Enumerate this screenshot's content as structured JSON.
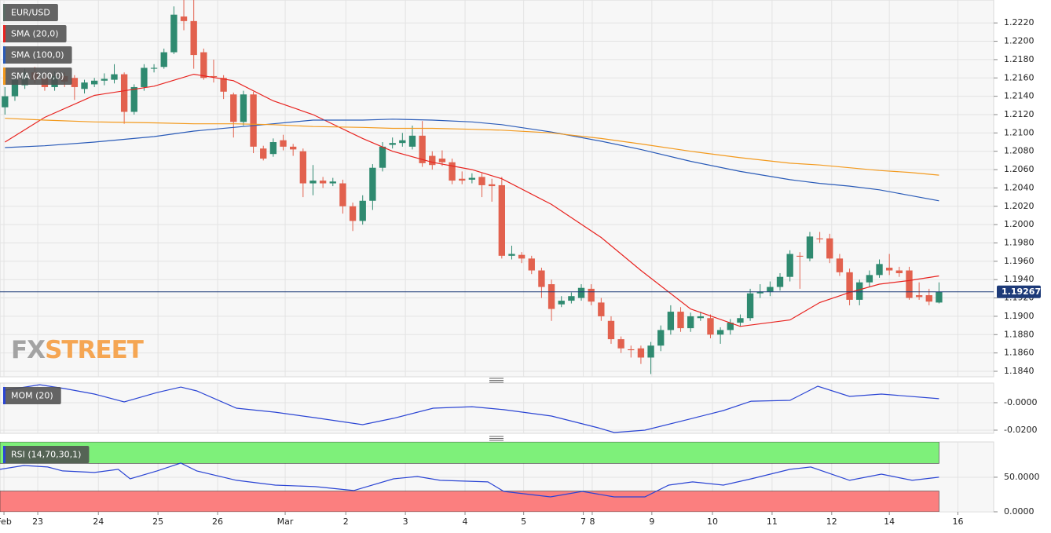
{
  "watermark": {
    "fx": "FX",
    "street": "STREET"
  },
  "chart_data": [
    {
      "type": "candlestick",
      "xlim": [
        -0.5,
        99.5
      ],
      "ylim": [
        1.1834,
        1.2245
      ],
      "yticks": [
        {
          "value": 1.222,
          "label": "1.2220"
        },
        {
          "value": 1.22,
          "label": "1.2200"
        },
        {
          "value": 1.218,
          "label": "1.2180"
        },
        {
          "value": 1.216,
          "label": "1.2160"
        },
        {
          "value": 1.214,
          "label": "1.2140"
        },
        {
          "value": 1.212,
          "label": "1.2120"
        },
        {
          "value": 1.21,
          "label": "1.2100"
        },
        {
          "value": 1.208,
          "label": "1.2080"
        },
        {
          "value": 1.206,
          "label": "1.2060"
        },
        {
          "value": 1.204,
          "label": "1.2040"
        },
        {
          "value": 1.202,
          "label": "1.2020"
        },
        {
          "value": 1.2,
          "label": "1.2000"
        },
        {
          "value": 1.198,
          "label": "1.1980"
        },
        {
          "value": 1.196,
          "label": "1.1960"
        },
        {
          "value": 1.194,
          "label": "1.1940"
        },
        {
          "value": 1.192,
          "label": "1.1920"
        },
        {
          "value": 1.19,
          "label": "1.1900"
        },
        {
          "value": 1.188,
          "label": "1.1880"
        },
        {
          "value": 1.186,
          "label": "1.1860"
        },
        {
          "value": 1.184,
          "label": "1.1840"
        }
      ],
      "last_price": {
        "value": 1.19267,
        "label": "1.19267",
        "color": "#1d3a78"
      },
      "series": [
        {
          "name": "EUR/USD",
          "up_color": "#2f8a70",
          "down_color": "#e2614e",
          "color": "#596b63",
          "x": [
            0,
            1,
            2,
            3,
            4,
            5,
            6,
            7,
            8,
            9,
            10,
            11,
            12,
            13,
            14,
            15,
            16,
            17,
            18,
            19,
            20,
            21,
            22,
            23,
            24,
            25,
            26,
            27,
            28,
            29,
            30,
            31,
            32,
            33,
            34,
            35,
            36,
            37,
            38,
            39,
            40,
            41,
            42,
            43,
            44,
            45,
            46,
            47,
            48,
            49,
            50,
            51,
            52,
            53,
            54,
            55,
            56,
            57,
            58,
            59,
            60,
            61,
            62,
            63,
            64,
            65,
            66,
            67,
            68,
            69,
            70,
            71,
            72,
            73,
            74,
            75,
            76,
            77,
            78,
            79,
            80,
            81,
            82,
            83,
            84,
            85,
            86,
            87,
            88,
            89,
            90,
            91,
            92,
            93,
            94
          ],
          "open": [
            1.2128,
            1.214,
            1.2152,
            1.2166,
            1.216,
            1.215,
            1.2162,
            1.216,
            1.2148,
            1.2153,
            1.2157,
            1.2158,
            1.2164,
            1.2123,
            1.215,
            1.217,
            1.2172,
            1.2188,
            1.2227,
            1.2222,
            1.2188,
            1.2162,
            1.216,
            1.2142,
            1.2112,
            1.2142,
            1.2083,
            1.2077,
            1.2092,
            1.2085,
            1.208,
            1.2045,
            1.2048,
            1.2045,
            1.2045,
            1.202,
            1.2004,
            1.2026,
            1.2062,
            1.2087,
            1.2089,
            1.2085,
            1.2097,
            1.2075,
            1.2072,
            1.2068,
            1.205,
            1.2049,
            1.2052,
            1.2044,
            1.2043,
            1.1966,
            1.1967,
            1.1963,
            1.195,
            1.1935,
            1.1913,
            1.1917,
            1.192,
            1.193,
            1.1915,
            1.1895,
            1.1875,
            1.1864,
            1.1865,
            1.1855,
            1.1868,
            1.1885,
            1.1905,
            1.1887,
            1.1898,
            1.1898,
            1.188,
            1.1885,
            1.1893,
            1.1898,
            1.1925,
            1.1927,
            1.1932,
            1.1943,
            1.1966,
            1.1963,
            1.1985,
            1.1985,
            1.1963,
            1.1948,
            1.1918,
            1.1937,
            1.1945,
            1.1953,
            1.195,
            1.195,
            1.1923,
            1.1923,
            1.1915
          ],
          "high": [
            1.215,
            1.2162,
            1.217,
            1.2172,
            1.2165,
            1.2167,
            1.2166,
            1.2163,
            1.2158,
            1.216,
            1.2165,
            1.2175,
            1.2166,
            1.2153,
            1.2175,
            1.2175,
            1.2192,
            1.2238,
            1.2247,
            1.2245,
            1.2192,
            1.218,
            1.2163,
            1.2144,
            1.2146,
            1.2145,
            1.2086,
            1.2094,
            1.2098,
            1.2088,
            1.2083,
            1.2065,
            1.2052,
            1.2051,
            1.2049,
            1.2024,
            1.2032,
            1.2066,
            1.209,
            1.2095,
            1.21,
            1.2108,
            1.2113,
            1.208,
            1.2081,
            1.2072,
            1.2058,
            1.2056,
            1.2056,
            1.205,
            1.2052,
            1.1977,
            1.197,
            1.1966,
            1.1953,
            1.194,
            1.1922,
            1.1926,
            1.1935,
            1.1935,
            1.192,
            1.19,
            1.1878,
            1.1868,
            1.1868,
            1.1872,
            1.189,
            1.1912,
            1.191,
            1.1904,
            1.1905,
            1.1902,
            1.1888,
            1.1897,
            1.1902,
            1.193,
            1.1935,
            1.1938,
            1.1947,
            1.1972,
            1.197,
            1.1992,
            1.1992,
            1.199,
            1.1968,
            1.1952,
            1.194,
            1.195,
            1.1962,
            1.1968,
            1.1954,
            1.1954,
            1.1937,
            1.193,
            1.1937
          ],
          "low": [
            1.212,
            1.2135,
            1.2148,
            1.2154,
            1.2146,
            1.2146,
            1.215,
            1.2136,
            1.2143,
            1.215,
            1.2152,
            1.2154,
            1.211,
            1.212,
            1.2146,
            1.2166,
            1.217,
            1.2186,
            1.2212,
            1.217,
            1.2158,
            1.2155,
            1.2137,
            1.2095,
            1.2108,
            1.2078,
            1.207,
            1.2074,
            1.2081,
            1.2075,
            1.203,
            1.2032,
            1.204,
            1.2042,
            1.2012,
            1.1993,
            1.2,
            1.2016,
            1.2058,
            1.2083,
            1.2085,
            1.2082,
            1.2063,
            1.206,
            1.2064,
            1.2044,
            1.2044,
            1.2045,
            1.203,
            1.2025,
            1.1963,
            1.1962,
            1.1958,
            1.1946,
            1.192,
            1.1895,
            1.191,
            1.1914,
            1.1917,
            1.1912,
            1.1895,
            1.187,
            1.186,
            1.1855,
            1.1848,
            1.1837,
            1.1862,
            1.188,
            1.1883,
            1.1883,
            1.1895,
            1.1876,
            1.187,
            1.188,
            1.1889,
            1.1895,
            1.192,
            1.1922,
            1.1928,
            1.1938,
            1.193,
            1.196,
            1.198,
            1.1958,
            1.1944,
            1.1912,
            1.1912,
            1.1932,
            1.1942,
            1.1945,
            1.1943,
            1.1918,
            1.1918,
            1.1912,
            1.1914
          ],
          "close": [
            1.214,
            1.2158,
            1.2166,
            1.2158,
            1.215,
            1.2162,
            1.2156,
            1.215,
            1.2155,
            1.2157,
            1.2159,
            1.2164,
            1.2123,
            1.215,
            1.2171,
            1.2171,
            1.2188,
            1.2229,
            1.2222,
            1.2185,
            1.216,
            1.2161,
            1.2145,
            1.2112,
            1.2142,
            1.2085,
            1.2072,
            1.209,
            1.2085,
            1.2082,
            1.2045,
            1.2048,
            1.2045,
            1.2047,
            1.202,
            1.2004,
            1.2026,
            1.2062,
            1.2085,
            1.2089,
            1.2092,
            1.2097,
            1.2067,
            1.2065,
            1.2068,
            1.2048,
            1.2048,
            1.2051,
            1.2043,
            1.2042,
            1.1966,
            1.1968,
            1.1963,
            1.195,
            1.1932,
            1.1908,
            1.1917,
            1.1922,
            1.1931,
            1.1916,
            1.19,
            1.1875,
            1.1865,
            1.1863,
            1.1855,
            1.1868,
            1.1885,
            1.1905,
            1.1887,
            1.19,
            1.19,
            1.188,
            1.1885,
            1.1893,
            1.1898,
            1.1925,
            1.1927,
            1.1932,
            1.1943,
            1.1968,
            1.1965,
            1.1987,
            1.1984,
            1.1963,
            1.1948,
            1.1918,
            1.1937,
            1.1945,
            1.1957,
            1.195,
            1.1947,
            1.192,
            1.1921,
            1.1916,
            1.19267
          ]
        },
        {
          "name": "SMA (20,0)",
          "color": "#e8231f",
          "x": [
            0,
            4,
            9,
            15,
            19,
            23,
            27,
            31,
            36,
            39,
            43,
            47,
            50,
            55,
            60,
            64,
            69,
            74,
            79,
            82,
            85,
            88,
            91,
            94
          ],
          "values": [
            1.209,
            1.2117,
            1.2141,
            1.2151,
            1.2164,
            1.2157,
            1.2135,
            1.212,
            1.2094,
            1.208,
            1.2068,
            1.206,
            1.205,
            1.2022,
            1.1986,
            1.195,
            1.1908,
            1.1889,
            1.1896,
            1.1915,
            1.1926,
            1.1935,
            1.1939,
            1.1944
          ]
        },
        {
          "name": "SMA (100,0)",
          "color": "#2a5bb8",
          "x": [
            0,
            4,
            9,
            15,
            19,
            23,
            27,
            31,
            36,
            39,
            43,
            47,
            50,
            55,
            60,
            64,
            69,
            74,
            79,
            82,
            85,
            88,
            91,
            94
          ],
          "values": [
            1.2084,
            1.2086,
            1.209,
            1.2096,
            1.2102,
            1.2106,
            1.211,
            1.2114,
            1.2114,
            1.2115,
            1.2114,
            1.2112,
            1.2109,
            1.2101,
            1.2091,
            1.2082,
            1.2069,
            1.2058,
            1.2049,
            1.2045,
            1.2042,
            1.2038,
            1.2032,
            1.2026
          ]
        },
        {
          "name": "SMA (200,0)",
          "color": "#f39a1e",
          "x": [
            0,
            4,
            9,
            15,
            19,
            23,
            27,
            31,
            36,
            39,
            43,
            47,
            50,
            55,
            60,
            64,
            69,
            74,
            79,
            82,
            85,
            88,
            91,
            94
          ],
          "values": [
            1.2116,
            1.2114,
            1.2112,
            1.2111,
            1.211,
            1.211,
            1.2109,
            1.2107,
            1.2106,
            1.2105,
            1.2105,
            1.2104,
            1.2103,
            1.21,
            1.2094,
            1.2088,
            1.208,
            1.2073,
            1.2067,
            1.2065,
            1.2062,
            1.2059,
            1.2057,
            1.2054
          ]
        }
      ]
    },
    {
      "type": "line",
      "xlim": [
        -0.5,
        99.5
      ],
      "ylim": [
        -0.0223,
        0.0143
      ],
      "yticks": [
        {
          "value": 0,
          "label": "-0.0000"
        },
        {
          "value": -0.02,
          "label": "-0.0200"
        }
      ],
      "series": [
        {
          "name": "MOM (20)",
          "color": "#2b45d4",
          "x": [
            0,
            3.5,
            6,
            9,
            12,
            15.3,
            17.7,
            19.3,
            23.3,
            27.2,
            31.2,
            36,
            39.1,
            43.1,
            47,
            50.2,
            55,
            59.7,
            61.3,
            64.4,
            69.2,
            72.3,
            75.1,
            79,
            81.8,
            85,
            88.2,
            94
          ],
          "values": [
            0.0091,
            0.0131,
            0.0103,
            0.0063,
            0.0006,
            0.0074,
            0.0114,
            0.0086,
            -0.004,
            -0.0069,
            -0.0109,
            -0.016,
            -0.0114,
            -0.004,
            -0.0029,
            -0.0051,
            -0.0097,
            -0.0183,
            -0.0217,
            -0.02,
            -0.0114,
            -0.0057,
            0.0011,
            0.0017,
            0.012,
            0.0046,
            0.0063,
            0.0029
          ]
        }
      ]
    },
    {
      "type": "line",
      "xlim": [
        -0.5,
        99.5
      ],
      "ylim": [
        0,
        101
      ],
      "yticks": [
        {
          "value": 50,
          "label": "50.0000"
        },
        {
          "value": 0,
          "label": "0.0000"
        }
      ],
      "overbought": 70,
      "oversold": 30,
      "overbought_color": "#7ef07a",
      "oversold_color": "#fb7f7f",
      "xticks": [
        {
          "value": -0.1,
          "label": "Feb"
        },
        {
          "value": 3.3,
          "label": "23"
        },
        {
          "value": 9.4,
          "label": "24"
        },
        {
          "value": 15.4,
          "label": "25"
        },
        {
          "value": 21.4,
          "label": "26"
        },
        {
          "value": 28.2,
          "label": "Mar"
        },
        {
          "value": 34.3,
          "label": "2"
        },
        {
          "value": 40.3,
          "label": "3"
        },
        {
          "value": 46.3,
          "label": "4"
        },
        {
          "value": 52.2,
          "label": "5"
        },
        {
          "value": 58.2,
          "label": "7"
        },
        {
          "value": 59.1,
          "label": "8"
        },
        {
          "value": 65.1,
          "label": "9"
        },
        {
          "value": 71.2,
          "label": "10"
        },
        {
          "value": 77.2,
          "label": "11"
        },
        {
          "value": 83.2,
          "label": "12"
        },
        {
          "value": 89,
          "label": "14"
        },
        {
          "value": 95.9,
          "label": "16"
        }
      ],
      "series": [
        {
          "name": "RSI (14,70,30,1)",
          "color": "#2b45d4",
          "x": [
            -0.5,
            1.9,
            4.3,
            5.8,
            9,
            11.4,
            12.6,
            15.3,
            17.7,
            19.3,
            23.3,
            27.2,
            31.2,
            35.1,
            39.1,
            41.5,
            43.8,
            48.6,
            50.2,
            54.9,
            58.1,
            61.3,
            64.4,
            66.8,
            69.2,
            72.3,
            75.1,
            79,
            81.1,
            83.4,
            85,
            88.2,
            91.3,
            94
          ],
          "values": [
            61.4,
            67,
            64.8,
            59.1,
            56.8,
            61.4,
            47.7,
            59.1,
            70.5,
            59.1,
            45.5,
            38.6,
            36.4,
            30.7,
            47.7,
            51.1,
            45.5,
            43.2,
            29.5,
            21.6,
            29.5,
            21.6,
            21.6,
            38.6,
            43.2,
            38.6,
            47.7,
            61.4,
            64.8,
            53.4,
            45.5,
            54.5,
            45.5,
            50
          ]
        }
      ]
    }
  ]
}
